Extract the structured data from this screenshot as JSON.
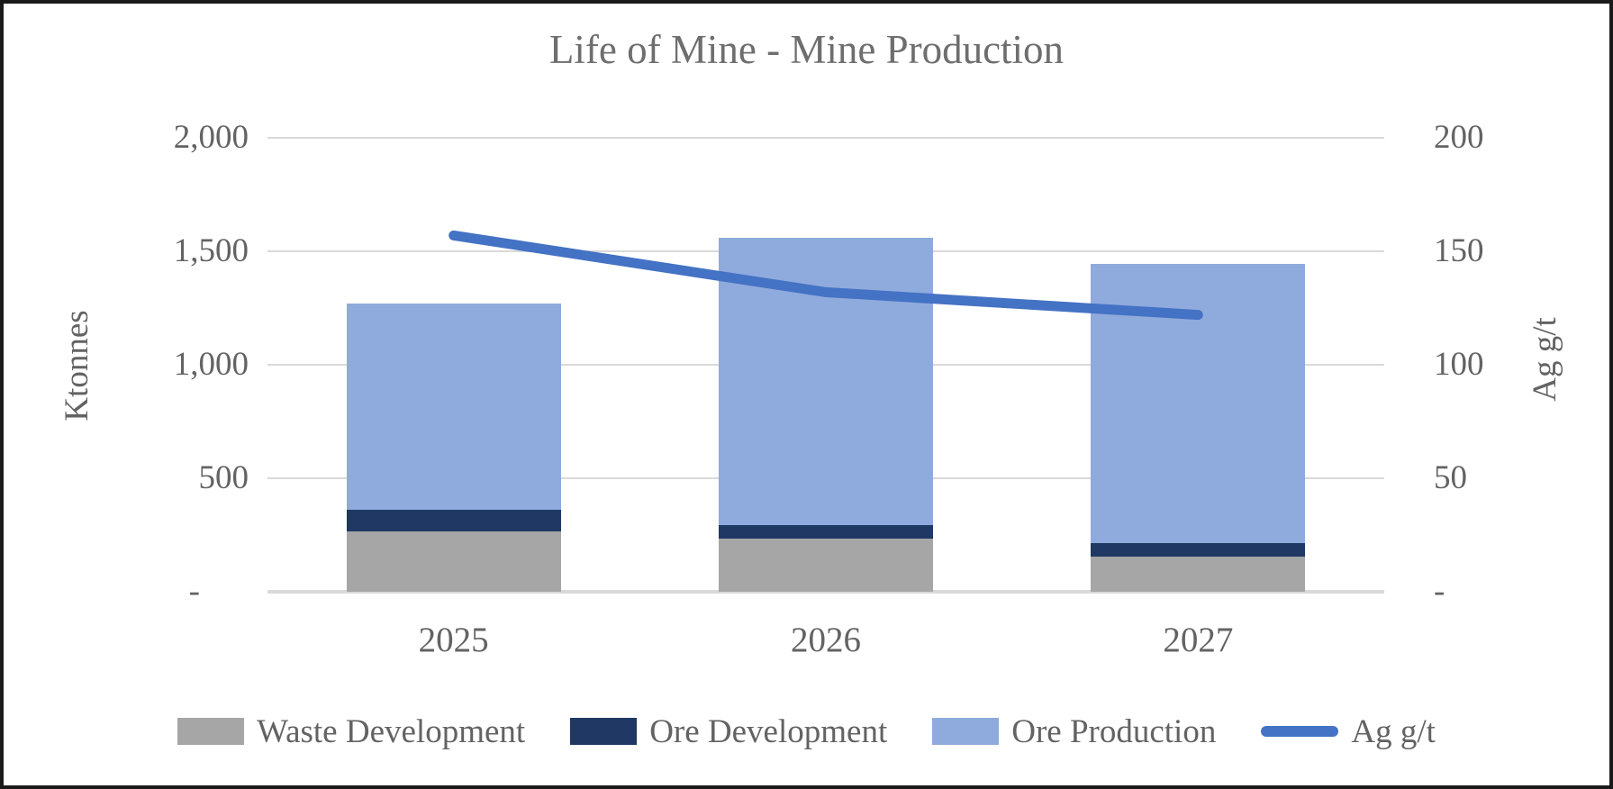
{
  "chart_data": {
    "type": "bar",
    "subtype": "stacked-column-with-line-combo",
    "title": "Life of Mine - Mine Production",
    "categories": [
      "2025",
      "2026",
      "2027"
    ],
    "bar_series": [
      {
        "name": "Waste Development",
        "color": "#A6A6A6",
        "values": [
          265,
          235,
          155
        ]
      },
      {
        "name": "Ore Development",
        "color": "#1F3864",
        "values": [
          95,
          60,
          60
        ]
      },
      {
        "name": "Ore Production",
        "color": "#8FAADC",
        "values": [
          910,
          1265,
          1230
        ]
      }
    ],
    "line_series": {
      "name": "Ag g/t",
      "color": "#4472C4",
      "axis": "right",
      "values": [
        157,
        132,
        122
      ]
    },
    "left_axis": {
      "label": "Ktonnes",
      "min": 0,
      "max": 2000,
      "ticks": [
        "2,000",
        "1,500",
        "1,000",
        "500",
        "-"
      ]
    },
    "right_axis": {
      "label": "Ag g/t",
      "min": 0,
      "max": 200,
      "ticks": [
        "200",
        "150",
        "100",
        "50",
        "-"
      ]
    },
    "grid": true,
    "gridline_color": "#D9D9D9",
    "axis_line_color": "#D9D9D9",
    "text_color": "#636363",
    "legend_position": "bottom",
    "legend_labels": [
      "Waste Development",
      "Ore Development",
      "Ore Production",
      "Ag g/t"
    ]
  }
}
